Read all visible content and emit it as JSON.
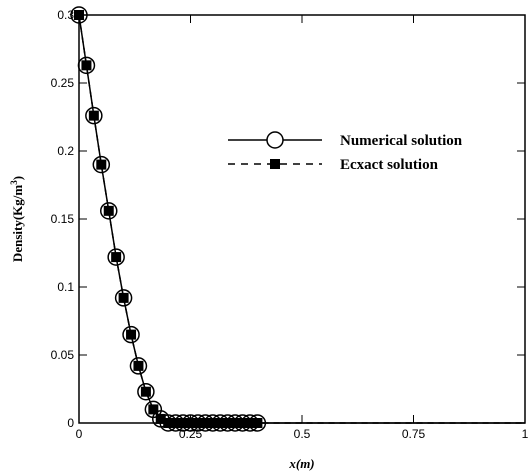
{
  "chart_data": {
    "type": "line",
    "xlabel": "x(m)",
    "ylabel_main": "Density(Kg/m",
    "ylabel_sup": "3",
    "ylabel_close": ")",
    "xlim": [
      0,
      1
    ],
    "ylim": [
      0,
      0.3
    ],
    "x_ticks": [
      0,
      0.25,
      0.5,
      0.75,
      1
    ],
    "x_tick_labels": [
      "0",
      "0.25",
      "0.5",
      "0.75",
      "1"
    ],
    "y_ticks": [
      0,
      0.05,
      0.1,
      0.15,
      0.2,
      0.25,
      0.3
    ],
    "y_tick_labels": [
      "0",
      "0.05",
      "0.1",
      "0.15",
      "0.2",
      "0.25",
      "0.3"
    ],
    "legend_position": "upper-right",
    "series": [
      {
        "name": "Numerical solution",
        "style": "solid-line-open-circle",
        "x": [
          0,
          0.0167,
          0.0333,
          0.05,
          0.0667,
          0.0833,
          0.1,
          0.1167,
          0.1333,
          0.15,
          0.1667,
          0.1833,
          0.2,
          0.2167,
          0.2333,
          0.25,
          0.2667,
          0.2833,
          0.3,
          0.3167,
          0.3333,
          0.35,
          0.3667,
          0.3833,
          0.4
        ],
        "y": [
          0.3,
          0.263,
          0.226,
          0.19,
          0.156,
          0.122,
          0.092,
          0.065,
          0.042,
          0.023,
          0.01,
          0.003,
          0,
          0,
          0,
          0,
          0,
          0,
          0,
          0,
          0,
          0,
          0,
          0,
          0
        ]
      },
      {
        "name": "Ecxact solution",
        "style": "dashed-line-filled-square",
        "x": [
          0,
          0.0167,
          0.0333,
          0.05,
          0.0667,
          0.0833,
          0.1,
          0.1167,
          0.1333,
          0.15,
          0.1667,
          0.1833,
          0.2,
          0.2167,
          0.2333,
          0.25,
          0.2667,
          0.2833,
          0.3,
          0.3167,
          0.3333,
          0.35,
          0.3667,
          0.3833,
          0.4
        ],
        "y": [
          0.3,
          0.263,
          0.226,
          0.19,
          0.156,
          0.122,
          0.092,
          0.065,
          0.042,
          0.023,
          0.01,
          0.003,
          0,
          0,
          0,
          0,
          0,
          0,
          0,
          0,
          0,
          0,
          0,
          0,
          0
        ]
      }
    ]
  }
}
